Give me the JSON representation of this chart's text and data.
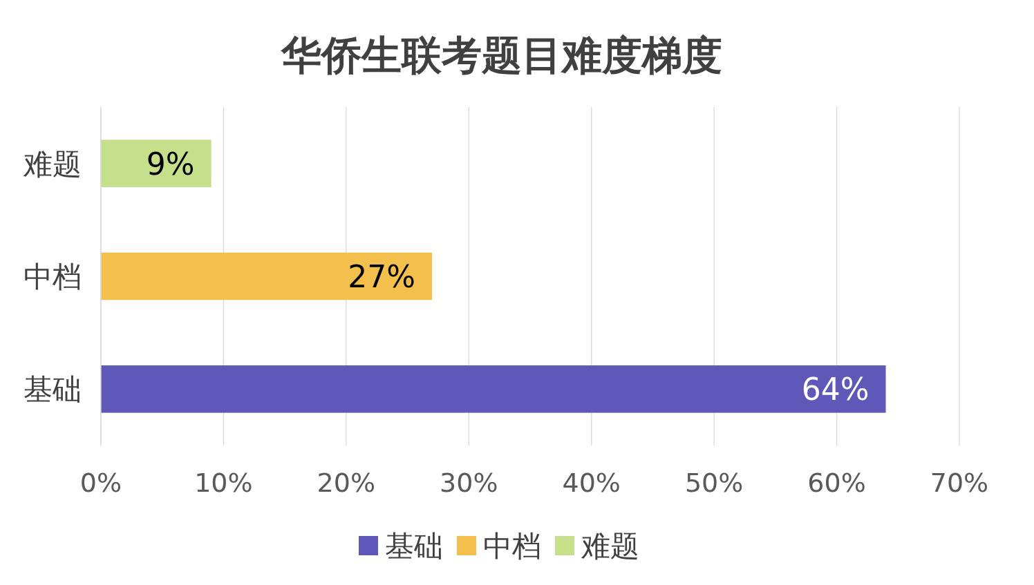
{
  "chart_data": {
    "type": "bar",
    "orientation": "horizontal",
    "title": "华侨生联考题目难度梯度",
    "categories": [
      "难题",
      "中档",
      "基础"
    ],
    "series": [
      {
        "name": "基础",
        "color": "#5f58b8",
        "values": [
          null,
          null,
          64
        ],
        "value_labels": [
          null,
          null,
          "64%"
        ]
      },
      {
        "name": "中档",
        "color": "#f3bf4d",
        "values": [
          null,
          27,
          null
        ],
        "value_labels": [
          null,
          "27%",
          null
        ]
      },
      {
        "name": "难题",
        "color": "#c5df8a",
        "values": [
          9,
          null,
          null
        ],
        "value_labels": [
          "9%",
          null,
          null
        ]
      }
    ],
    "xlim": [
      0,
      70
    ],
    "xticks": [
      {
        "value": 0,
        "label": "0%"
      },
      {
        "value": 10,
        "label": "10%"
      },
      {
        "value": 20,
        "label": "20%"
      },
      {
        "value": 30,
        "label": "30%"
      },
      {
        "value": 40,
        "label": "40%"
      },
      {
        "value": 50,
        "label": "50%"
      },
      {
        "value": 60,
        "label": "60%"
      },
      {
        "value": 70,
        "label": "70%"
      }
    ],
    "grid": "x",
    "legend": "bottom"
  }
}
